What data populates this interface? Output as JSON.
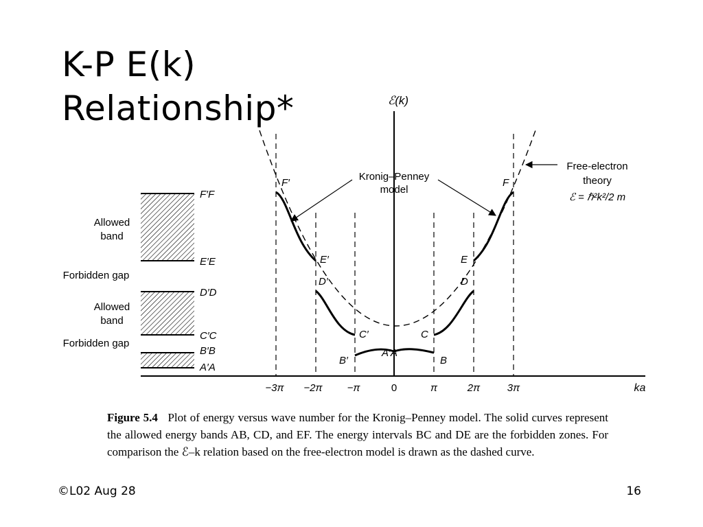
{
  "slide": {
    "title_line1": "K-P E(k)",
    "title_line2": "Relationship*",
    "footer_left": "©L02 Aug 28",
    "page_number": "16"
  },
  "diagram": {
    "y_axis_label": "ℰ(k)",
    "x_axis_label": "ka",
    "x_ticks": [
      "−3π",
      "−2π",
      "−π",
      "0",
      "π",
      "2π",
      "3π"
    ],
    "kp_model_label_line1": "Kronig–Penney",
    "kp_model_label_line2": "model",
    "free_electron_line1": "Free-electron",
    "free_electron_line2": "theory",
    "free_electron_formula": "ℰ = ℏ²k²/2 m",
    "points": {
      "Fp": "F′",
      "F": "F",
      "Ep": "E′",
      "E": "E",
      "Dp": "D′",
      "D": "D",
      "Cp": "C′",
      "C": "C",
      "Bp": "B′",
      "B": "B",
      "AA": "A′A"
    },
    "band_levels": {
      "FF": "F′F",
      "EE": "E′E",
      "DD": "D′D",
      "CC": "C′C",
      "BB": "B′B",
      "AA": "A′A"
    },
    "allowed_band_1_line1": "Allowed",
    "allowed_band_1_line2": "band",
    "forbidden_gap_1": "Forbidden gap",
    "allowed_band_2_line1": "Allowed",
    "allowed_band_2_line2": "band",
    "forbidden_gap_2": "Forbidden gap"
  },
  "caption": {
    "figure_label": "Figure 5.4",
    "text": "Plot of energy versus wave number for the Kronig–Penney model. The solid curves represent the allowed energy bands AB, CD, and EF. The energy intervals BC and DE are the forbidden zones. For comparison the ℰ–k relation based on the free-electron model is drawn as the dashed curve."
  }
}
